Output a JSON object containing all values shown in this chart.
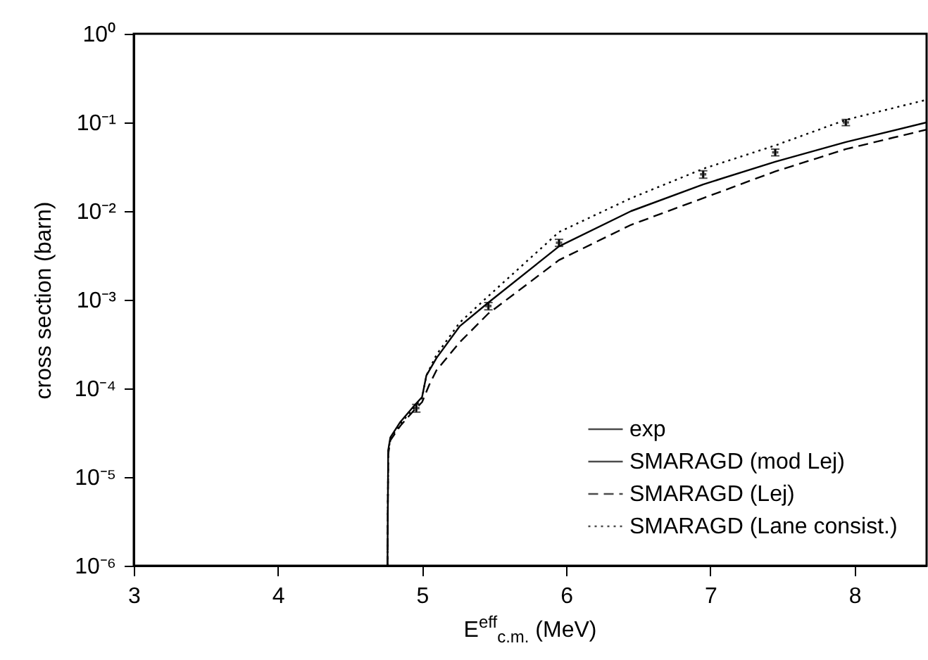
{
  "chart_data": {
    "type": "line",
    "xlabel": "E$^{eff}$$_{c.m.}$ (MeV)",
    "ylabel": "cross section (barn)",
    "log": "y",
    "grid": false,
    "legend": "bottom right",
    "xlim": [
      3,
      8.5
    ],
    "xticks": [
      3,
      4,
      5,
      6,
      7,
      8
    ],
    "ylim": [
      1e-06,
      1
    ],
    "yticks": [
      {
        "value": 1e-06,
        "label": "10⁻⁶"
      },
      {
        "value": 1e-05,
        "label": "10⁻⁵"
      },
      {
        "value": 0.0001,
        "label": "10⁻⁴"
      },
      {
        "value": 0.001,
        "label": "10⁻³"
      },
      {
        "value": 0.01,
        "label": "10⁻²"
      },
      {
        "value": 0.1,
        "label": "10⁻¹"
      },
      {
        "value": 1,
        "label": "10⁰"
      }
    ],
    "series": [
      {
        "name": "exp",
        "type": "scatter",
        "color": "#000000",
        "x": [
          4.96,
          5.46,
          5.95,
          6.95,
          7.45,
          7.94
        ],
        "values": [
          6e-05,
          0.00085,
          0.0044,
          0.026,
          0.046,
          0.1
        ],
        "errors": [
          6e-06,
          8e-05,
          0.0004,
          0.0025,
          0.004,
          0.008
        ]
      },
      {
        "name": "SMARAGD (mod Lej)",
        "color": "#000000",
        "line_style": "solid",
        "x": [
          4.76,
          4.765,
          4.78,
          4.85,
          4.95,
          5.0,
          5.03,
          5.1,
          5.26,
          5.46,
          5.95,
          6.45,
          6.95,
          7.45,
          7.94,
          8.5
        ],
        "values": [
          1e-06,
          2e-05,
          2.8e-05,
          4.2e-05,
          6.5e-05,
          8e-05,
          0.00014,
          0.00022,
          0.0005,
          0.00093,
          0.004,
          0.01,
          0.02,
          0.036,
          0.06,
          0.1
        ]
      },
      {
        "name": "SMARAGD (Lej)",
        "color": "#000000",
        "line_style": "dashed",
        "x": [
          4.76,
          4.765,
          4.78,
          4.85,
          4.95,
          5.0,
          5.05,
          5.1,
          5.26,
          5.46,
          5.95,
          6.45,
          6.95,
          7.45,
          7.94,
          8.5
        ],
        "values": [
          1e-06,
          1.8e-05,
          2.6e-05,
          3.8e-05,
          5.8e-05,
          7e-05,
          0.00011,
          0.00016,
          0.00033,
          0.0007,
          0.0028,
          0.007,
          0.014,
          0.028,
          0.05,
          0.083
        ]
      },
      {
        "name": "SMARAGD (Lane consist.)",
        "color": "#000000",
        "line_style": "dotted",
        "x": [
          4.76,
          4.765,
          4.78,
          4.85,
          4.95,
          5.0,
          5.03,
          5.1,
          5.26,
          5.46,
          5.95,
          6.45,
          6.95,
          7.45,
          7.94,
          8.5
        ],
        "values": [
          1e-06,
          1.9e-05,
          2.7e-05,
          4e-05,
          6.2e-05,
          7.8e-05,
          0.00014,
          0.00024,
          0.00055,
          0.0011,
          0.0058,
          0.014,
          0.03,
          0.055,
          0.107,
          0.18
        ]
      }
    ]
  }
}
